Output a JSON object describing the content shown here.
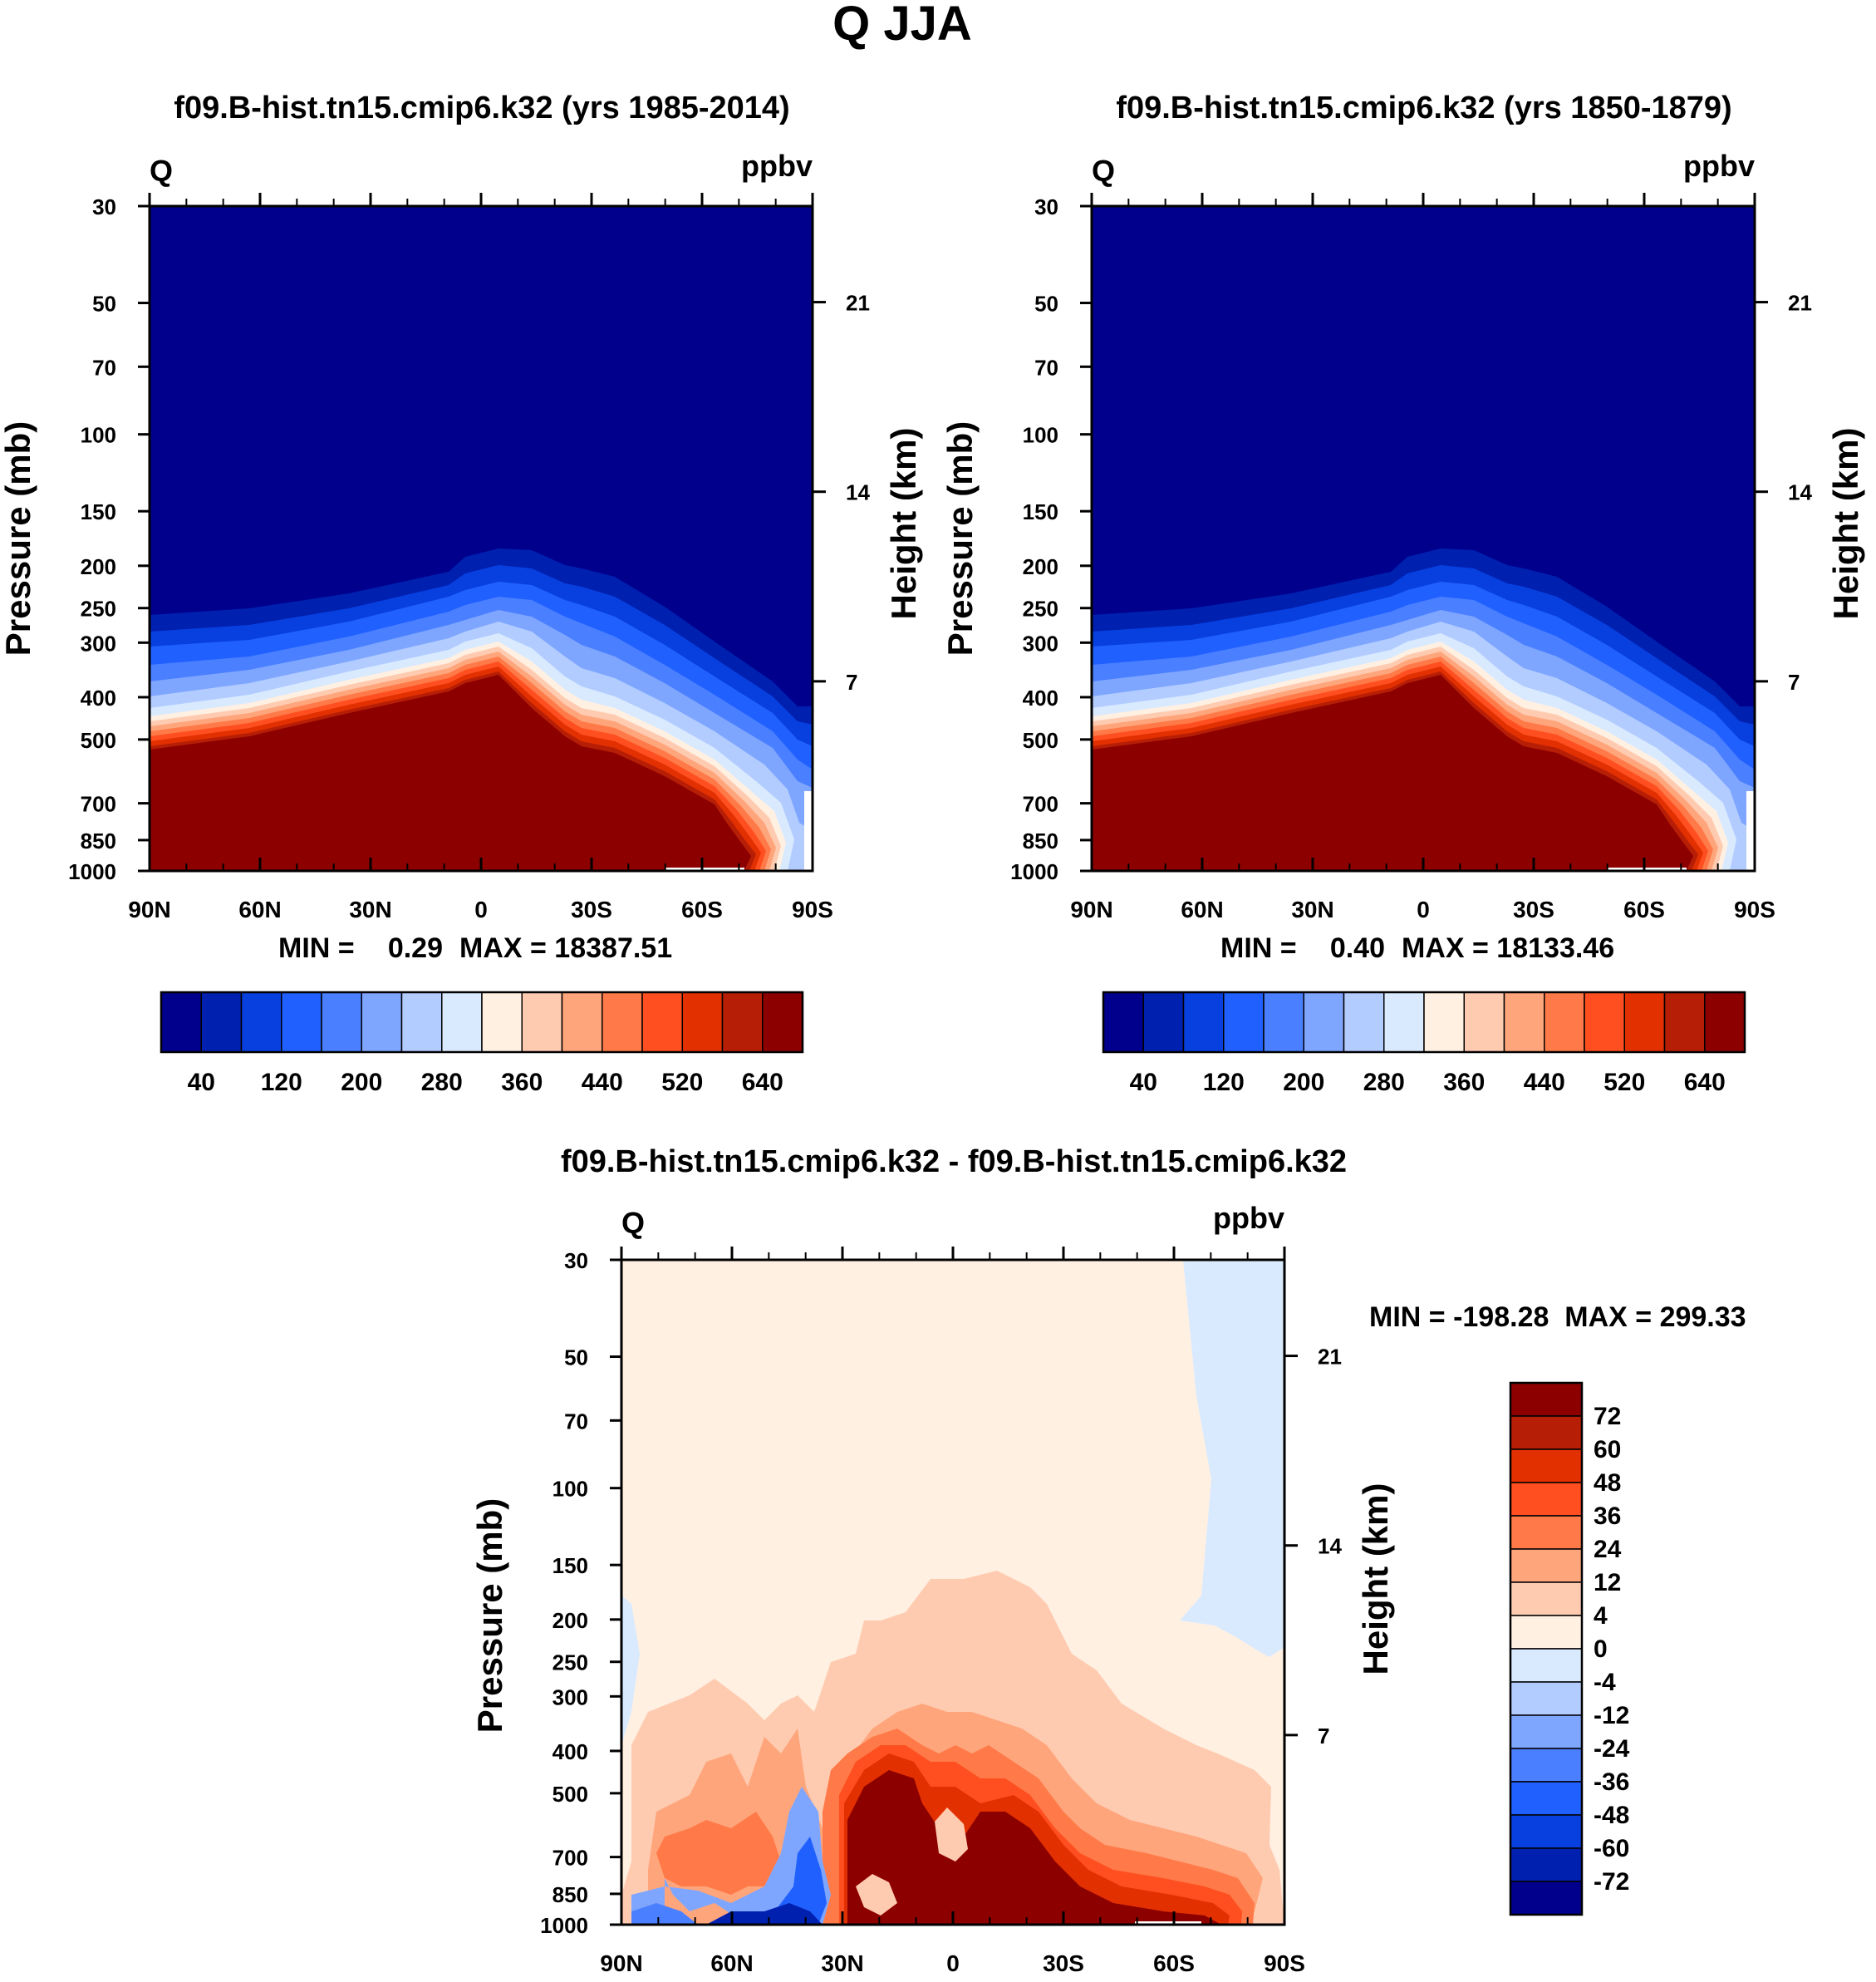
{
  "figure": {
    "title": "Q JJA"
  },
  "chart_data": [
    {
      "type": "heatmap",
      "title": "f09.B-hist.tn15.cmip6.k32 (yrs 1985-2014)",
      "left_label": "Q",
      "units": "ppbv",
      "ylabel": "Pressure (mb)",
      "ylabel_right": "Height (km)",
      "xlabel": "",
      "x_ticks": [
        "90N",
        "60N",
        "30N",
        "0",
        "30S",
        "60S",
        "90S"
      ],
      "y_ticks": [
        "30",
        "50",
        "70",
        "100",
        "150",
        "200",
        "250",
        "300",
        "400",
        "500",
        "700",
        "850",
        "1000"
      ],
      "height_ticks": [
        "21",
        "14",
        "7"
      ],
      "xlim": [
        90,
        -90
      ],
      "ylim": [
        1000,
        30
      ],
      "min_label": "MIN =",
      "min_value": "0.29",
      "max_label": "MAX = 18387.51",
      "colorbar_levels": [
        "40",
        "120",
        "200",
        "280",
        "360",
        "440",
        "520",
        "640"
      ],
      "colors": [
        "#00008c",
        "#0020b0",
        "#0840e0",
        "#2060ff",
        "#4a7fff",
        "#7fa6ff",
        "#b2ccff",
        "#d9eaff",
        "#fff0e2",
        "#ffcbb0",
        "#ffa57c",
        "#ff7a48",
        "#ff4f20",
        "#e33000",
        "#b71e06",
        "#8c0000"
      ]
    },
    {
      "type": "heatmap",
      "title": "f09.B-hist.tn15.cmip6.k32 (yrs 1850-1879)",
      "left_label": "Q",
      "units": "ppbv",
      "ylabel": "Pressure (mb)",
      "ylabel_right": "Height (km)",
      "xlabel": "",
      "x_ticks": [
        "90N",
        "60N",
        "30N",
        "0",
        "30S",
        "60S",
        "90S"
      ],
      "y_ticks": [
        "30",
        "50",
        "70",
        "100",
        "150",
        "200",
        "250",
        "300",
        "400",
        "500",
        "700",
        "850",
        "1000"
      ],
      "height_ticks": [
        "21",
        "14",
        "7"
      ],
      "xlim": [
        90,
        -90
      ],
      "ylim": [
        1000,
        30
      ],
      "min_label": "MIN =",
      "min_value": "0.40",
      "max_label": "MAX = 18133.46",
      "colorbar_levels": [
        "40",
        "120",
        "200",
        "280",
        "360",
        "440",
        "520",
        "640"
      ],
      "colors": [
        "#00008c",
        "#0020b0",
        "#0840e0",
        "#2060ff",
        "#4a7fff",
        "#7fa6ff",
        "#b2ccff",
        "#d9eaff",
        "#fff0e2",
        "#ffcbb0",
        "#ffa57c",
        "#ff7a48",
        "#ff4f20",
        "#e33000",
        "#b71e06",
        "#8c0000"
      ]
    },
    {
      "type": "heatmap",
      "title": "f09.B-hist.tn15.cmip6.k32 - f09.B-hist.tn15.cmip6.k32",
      "left_label": "Q",
      "units": "ppbv",
      "ylabel": "Pressure (mb)",
      "ylabel_right": "Height (km)",
      "xlabel": "",
      "x_ticks": [
        "90N",
        "60N",
        "30N",
        "0",
        "30S",
        "60S",
        "90S"
      ],
      "y_ticks": [
        "30",
        "50",
        "70",
        "100",
        "150",
        "200",
        "250",
        "300",
        "400",
        "500",
        "700",
        "850",
        "1000"
      ],
      "height_ticks": [
        "21",
        "14",
        "7"
      ],
      "xlim": [
        90,
        -90
      ],
      "ylim": [
        1000,
        30
      ],
      "minmax_label": "MIN = -198.28  MAX = 299.33",
      "colorbar_levels": [
        "72",
        "60",
        "48",
        "36",
        "24",
        "12",
        "4",
        "0",
        "-4",
        "-12",
        "-24",
        "-36",
        "-48",
        "-60",
        "-72"
      ],
      "colors": [
        "#8c0000",
        "#b71e06",
        "#e33000",
        "#ff4f20",
        "#ff7a48",
        "#ffa57c",
        "#ffcbb0",
        "#fff0e2",
        "#d9eaff",
        "#b2ccff",
        "#7fa6ff",
        "#4a7fff",
        "#2060ff",
        "#0840e0",
        "#0020b0",
        "#00008c"
      ]
    }
  ]
}
